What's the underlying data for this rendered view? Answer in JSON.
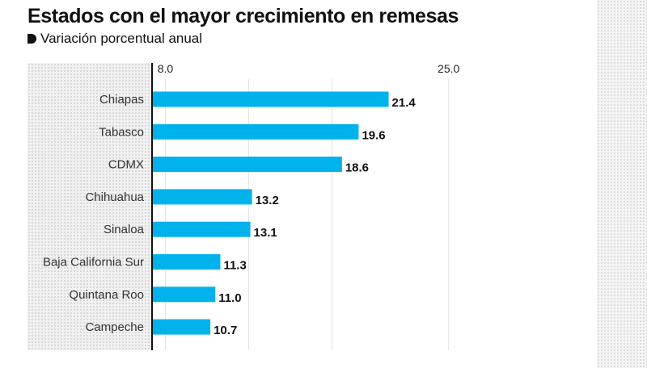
{
  "title": "Estados con el mayor crecimiento en remesas",
  "subtitle": "Variación porcentual anual",
  "chart_data": {
    "type": "bar",
    "orientation": "horizontal",
    "title": "Estados con el mayor crecimiento en remesas",
    "subtitle": "Variación porcentual anual",
    "xlabel": "",
    "ylabel": "",
    "categories": [
      "Chiapas",
      "Tabasco",
      "CDMX",
      "Chihuahua",
      "Sinaloa",
      "Baja California Sur",
      "Quintana Roo",
      "Campeche"
    ],
    "values": [
      21.4,
      19.6,
      18.6,
      13.2,
      13.1,
      11.3,
      11.0,
      10.7
    ],
    "value_labels": [
      "21.4",
      "19.6",
      "18.6",
      "13.2",
      "13.1",
      "11.3",
      "11.0",
      "10.7"
    ],
    "tick_labels": [
      "8.0",
      "25.0"
    ],
    "xlim": [
      8.0,
      25.0
    ],
    "grid": true,
    "legend": "none",
    "bar_color": "#00b2ec"
  }
}
